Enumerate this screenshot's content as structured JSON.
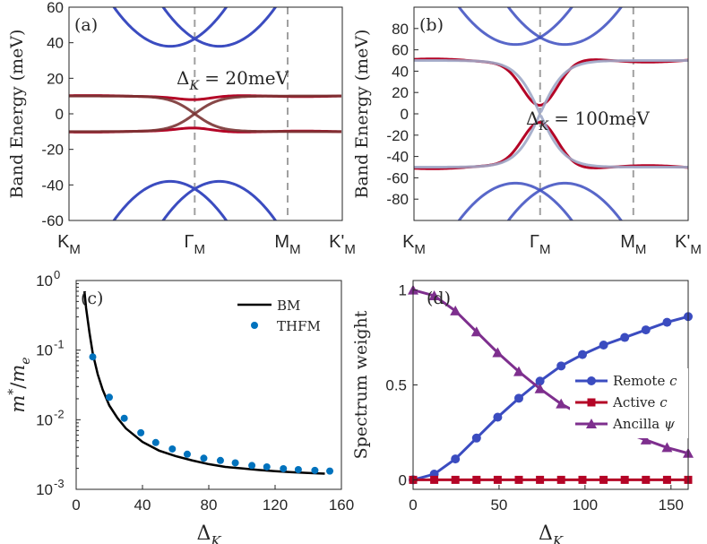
{
  "colors": {
    "blue": "#3b4cc0",
    "red": "#b40426",
    "dark": "#7a3434",
    "purple": "#7e2f8e",
    "cyan": "#0072bd",
    "grey": "#a0a0a0"
  },
  "chart_data": [
    {
      "id": "a",
      "type": "line",
      "panel_label": "(a)",
      "ylabel": "Band Energy (meV)",
      "ylim": [
        -60,
        60
      ],
      "yticks": [
        "-60",
        "-40",
        "-20",
        "0",
        "20",
        "40",
        "60"
      ],
      "xticks": [
        "K",
        "Γ",
        "M",
        "K'"
      ],
      "xtick_subscript": "M",
      "annotation": {
        "prefix": "Δ",
        "sub": "K",
        "text": " = 20meV"
      },
      "remote_min": 38,
      "flat": 10,
      "gap": 8
    },
    {
      "id": "b",
      "type": "line",
      "panel_label": "(b)",
      "ylabel": "Band Energy (meV)",
      "ylim": [
        -100,
        100
      ],
      "yticks": [
        "-80",
        "-60",
        "-40",
        "-20",
        "0",
        "20",
        "40",
        "60",
        "80"
      ],
      "xticks": [
        "K",
        "Γ",
        "M",
        "K'"
      ],
      "xtick_subscript": "M",
      "annotation": {
        "prefix": "Δ",
        "sub": "K",
        "text": " = 100meV"
      },
      "remote_min": 65,
      "flat": 50,
      "gap": 8
    },
    {
      "id": "c",
      "type": "line",
      "panel_label": "(c)",
      "ylabel_base": "m",
      "ylabel_sup": "*",
      "ylabel_den": "m",
      "ylabel_den_sub": "e",
      "xlabel_base": "Δ",
      "xlabel_sub": "K",
      "xlim": [
        0,
        160
      ],
      "ylim_log10": [
        -3,
        0
      ],
      "xticks": [
        "0",
        "40",
        "80",
        "120",
        "160"
      ],
      "yticks": [
        {
          "base": "10",
          "exp": "0"
        },
        {
          "base": "10",
          "exp": "-1"
        },
        {
          "base": "10",
          "exp": "-2"
        },
        {
          "base": "10",
          "exp": "-3"
        }
      ],
      "series": [
        {
          "name": "BM",
          "style": "line",
          "x": [
            5,
            6,
            8,
            10,
            13,
            16,
            20,
            25,
            30,
            40,
            50,
            60,
            70,
            80,
            90,
            100,
            110,
            120,
            130,
            140,
            150
          ],
          "y": [
            0.7,
            0.4,
            0.18,
            0.09,
            0.045,
            0.027,
            0.016,
            0.0105,
            0.0075,
            0.0048,
            0.0036,
            0.003,
            0.0026,
            0.0023,
            0.0021,
            0.002,
            0.0019,
            0.00182,
            0.00176,
            0.00172,
            0.00168
          ]
        },
        {
          "name": "THFM",
          "style": "markers",
          "x": [
            10,
            20,
            29,
            39,
            48,
            58,
            67,
            77,
            87,
            96,
            106,
            115,
            125,
            134,
            144,
            153
          ],
          "y": [
            0.08,
            0.021,
            0.0105,
            0.0065,
            0.0047,
            0.0038,
            0.0032,
            0.0028,
            0.0026,
            0.0024,
            0.0022,
            0.0021,
            0.00198,
            0.00192,
            0.00187,
            0.00183
          ]
        }
      ]
    },
    {
      "id": "d",
      "type": "line",
      "panel_label": "(d)",
      "ylabel": "Spectrum weight",
      "xlabel_base": "Δ",
      "xlabel_sub": "K",
      "xlim": [
        0,
        160
      ],
      "ylim": [
        -0.05,
        1.05
      ],
      "xticks": [
        "0",
        "50",
        "100",
        "150"
      ],
      "yticks": [
        "0",
        "0.5",
        "1"
      ],
      "x": [
        0,
        12.3,
        24.6,
        36.9,
        49.2,
        61.5,
        73.8,
        86.1,
        98.5,
        110.8,
        123.1,
        135.4,
        147.7,
        160
      ],
      "series": [
        {
          "name": "Remote",
          "name_italic": "c",
          "marker": "circle",
          "values": [
            0,
            0.03,
            0.11,
            0.22,
            0.33,
            0.43,
            0.52,
            0.6,
            0.66,
            0.71,
            0.75,
            0.79,
            0.83,
            0.86
          ]
        },
        {
          "name": "Active",
          "name_italic": "c",
          "marker": "square",
          "values": [
            0,
            0,
            0,
            0,
            0,
            0,
            0,
            0,
            0,
            0,
            0,
            0,
            0,
            0
          ]
        },
        {
          "name": "Ancilla",
          "name_italic": "ψ",
          "marker": "triangle",
          "values": [
            1,
            0.97,
            0.89,
            0.78,
            0.67,
            0.57,
            0.48,
            0.4,
            0.34,
            0.29,
            0.25,
            0.21,
            0.17,
            0.14
          ]
        }
      ]
    }
  ]
}
